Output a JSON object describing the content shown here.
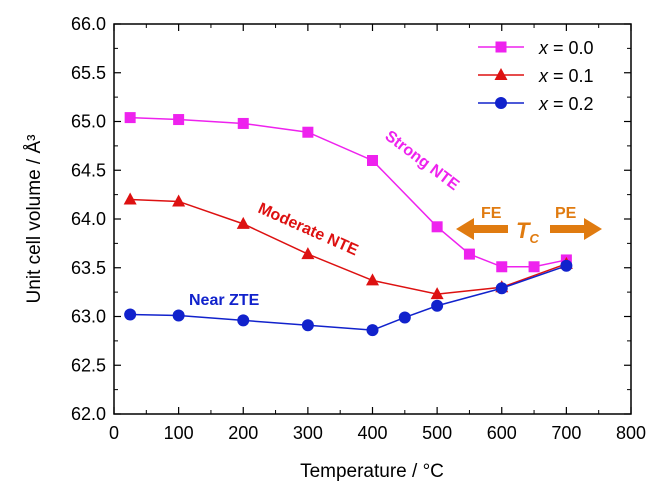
{
  "chart_data": {
    "type": "line",
    "xlabel": "Temperature  / °C",
    "ylabel": "Unit cell volume / Å³",
    "xlim": [
      0,
      800
    ],
    "ylim": [
      62.0,
      66.0
    ],
    "xticks": [
      "0",
      "100",
      "200",
      "300",
      "400",
      "500",
      "600",
      "700",
      "800"
    ],
    "yticks": [
      "62.0",
      "62.5",
      "63.0",
      "63.5",
      "64.0",
      "64.5",
      "65.0",
      "65.5",
      "66.0"
    ],
    "legend_position": "top-right",
    "series": [
      {
        "name": "x = 0.0",
        "var": "x",
        "value": " = 0.0",
        "color": "#ee22ee",
        "marker": "square",
        "x": [
          25,
          100,
          200,
          300,
          400,
          500,
          550,
          600,
          650,
          700
        ],
        "y": [
          65.04,
          65.02,
          64.98,
          64.89,
          64.6,
          63.92,
          63.64,
          63.51,
          63.51,
          63.58
        ]
      },
      {
        "name": "x = 0.1",
        "var": "x",
        "value": " = 0.1",
        "color": "#dd1111",
        "marker": "triangle",
        "x": [
          25,
          100,
          200,
          300,
          400,
          500,
          600,
          700
        ],
        "y": [
          64.2,
          64.18,
          63.95,
          63.64,
          63.37,
          63.23,
          63.3,
          63.54
        ]
      },
      {
        "name": "x = 0.2",
        "var": "x",
        "value": " = 0.2",
        "color": "#1122cc",
        "marker": "circle",
        "x": [
          25,
          100,
          200,
          300,
          400,
          450,
          500,
          600,
          700
        ],
        "y": [
          63.02,
          63.01,
          62.96,
          62.91,
          62.86,
          62.99,
          63.11,
          63.29,
          63.52
        ]
      }
    ],
    "annotations": {
      "strong": {
        "text": "Strong NTE",
        "color": "#ee22ee"
      },
      "moderate": {
        "text": "Moderate NTE",
        "color": "#dd1111"
      },
      "near": {
        "text": "Near ZTE",
        "color": "#1122cc"
      },
      "fe": {
        "text": "FE",
        "color": "#e07b10"
      },
      "pe": {
        "text": "PE",
        "color": "#e07b10"
      },
      "tc_main": "T",
      "tc_sub": "C",
      "arrow_color": "#e07b10"
    }
  }
}
